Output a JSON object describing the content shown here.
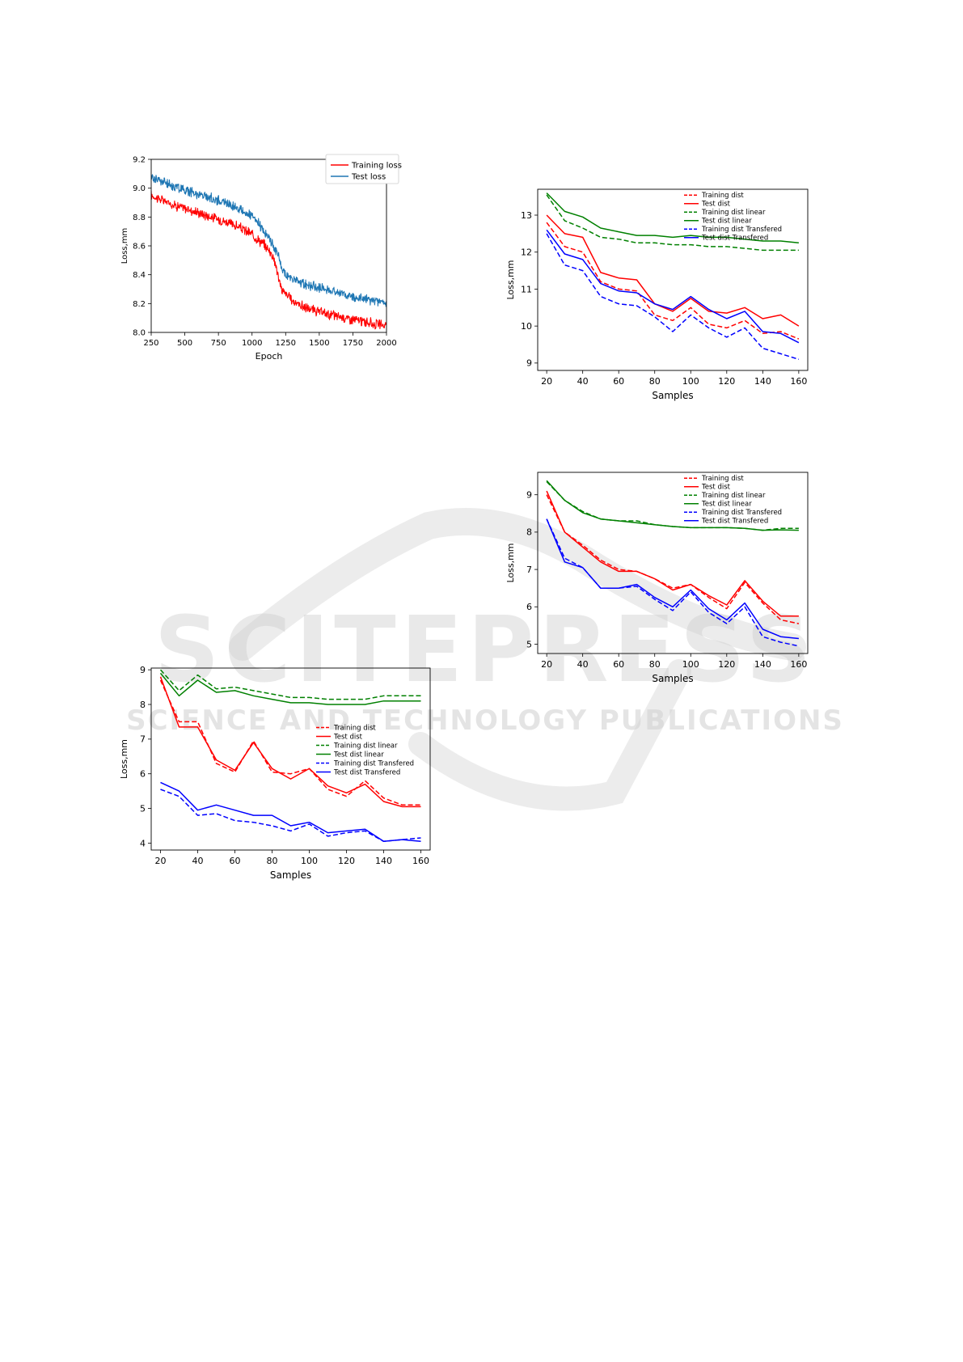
{
  "watermark": {
    "line1": "SCITEPRESS",
    "line2": "SCIENCE AND TECHNOLOGY PUBLICATIONS"
  },
  "chart_data": [
    {
      "id": "epoch",
      "type": "line",
      "title": "",
      "xlabel": "Epoch",
      "ylabel": "Loss,mm",
      "xlim": [
        250,
        2000
      ],
      "ylim": [
        8.0,
        9.2
      ],
      "xticks": [
        250,
        500,
        750,
        1000,
        1250,
        1500,
        1750,
        2000
      ],
      "yticks": [
        8.0,
        8.2,
        8.4,
        8.6,
        8.8,
        9.0,
        9.2
      ],
      "xtick_labels": [
        "250",
        "500",
        "750",
        "1000",
        "1250",
        "1500",
        "1750",
        "2000"
      ],
      "ytick_labels": [
        "8.0",
        "8.2",
        "8.4",
        "8.6",
        "8.8",
        "9.0",
        "9.2"
      ],
      "legend_position": "top-right",
      "noisy": true,
      "series": [
        {
          "name": "Training loss",
          "color": "#ff0000",
          "style": "solid",
          "x": [
            250,
            300,
            400,
            500,
            600,
            700,
            800,
            900,
            1000,
            1050,
            1100,
            1150,
            1180,
            1200,
            1220,
            1250,
            1300,
            1400,
            1500,
            1600,
            1700,
            1800,
            1900,
            2000
          ],
          "y": [
            8.95,
            8.93,
            8.89,
            8.86,
            8.83,
            8.8,
            8.77,
            8.73,
            8.68,
            8.64,
            8.6,
            8.54,
            8.46,
            8.36,
            8.3,
            8.27,
            8.22,
            8.17,
            8.14,
            8.12,
            8.1,
            8.08,
            8.06,
            8.05
          ]
        },
        {
          "name": "Test loss",
          "color": "#1f77b4",
          "style": "solid",
          "x": [
            250,
            300,
            400,
            500,
            600,
            700,
            800,
            900,
            1000,
            1050,
            1100,
            1150,
            1200,
            1220,
            1250,
            1300,
            1400,
            1500,
            1600,
            1700,
            1800,
            1900,
            2000
          ],
          "y": [
            9.08,
            9.06,
            9.02,
            8.99,
            8.96,
            8.93,
            8.9,
            8.86,
            8.8,
            8.75,
            8.69,
            8.62,
            8.52,
            8.44,
            8.4,
            8.37,
            8.33,
            8.31,
            8.29,
            8.26,
            8.24,
            8.22,
            8.2
          ]
        }
      ]
    },
    {
      "id": "samples-a",
      "type": "line",
      "title": "",
      "xlabel": "Samples",
      "ylabel": "Loss,mm",
      "xlim": [
        15,
        165
      ],
      "ylim": [
        8.8,
        13.7
      ],
      "xticks": [
        20,
        40,
        60,
        80,
        100,
        120,
        140,
        160
      ],
      "yticks": [
        9,
        10,
        11,
        12,
        13
      ],
      "xtick_labels": [
        "20",
        "40",
        "60",
        "80",
        "100",
        "120",
        "140",
        "160"
      ],
      "ytick_labels": [
        "9",
        "10",
        "11",
        "12",
        "13"
      ],
      "legend_position": "top-right",
      "x": [
        20,
        30,
        40,
        50,
        60,
        70,
        80,
        90,
        100,
        110,
        120,
        130,
        140,
        150,
        160
      ],
      "series": [
        {
          "name": "Training dist",
          "color": "#ff0000",
          "style": "dashed",
          "values": [
            12.8,
            12.15,
            12.0,
            11.2,
            11.0,
            10.95,
            10.3,
            10.15,
            10.5,
            10.05,
            9.95,
            10.15,
            9.8,
            9.85,
            9.65
          ]
        },
        {
          "name": "Test dist",
          "color": "#ff0000",
          "style": "solid",
          "values": [
            13.0,
            12.5,
            12.4,
            11.45,
            11.3,
            11.25,
            10.6,
            10.4,
            10.75,
            10.4,
            10.35,
            10.5,
            10.2,
            10.3,
            10.0
          ]
        },
        {
          "name": "Training dist linear",
          "color": "#008000",
          "style": "dashed",
          "values": [
            13.55,
            12.85,
            12.65,
            12.4,
            12.35,
            12.25,
            12.25,
            12.2,
            12.2,
            12.15,
            12.15,
            12.1,
            12.05,
            12.05,
            12.05
          ]
        },
        {
          "name": "Test dist linear",
          "color": "#008000",
          "style": "solid",
          "values": [
            13.6,
            13.1,
            12.95,
            12.65,
            12.55,
            12.45,
            12.45,
            12.4,
            12.45,
            12.4,
            12.4,
            12.35,
            12.3,
            12.3,
            12.25
          ]
        },
        {
          "name": "Training dist Transfered",
          "color": "#0000ff",
          "style": "dashed",
          "values": [
            12.5,
            11.65,
            11.5,
            10.8,
            10.6,
            10.55,
            10.25,
            9.85,
            10.3,
            9.95,
            9.7,
            9.95,
            9.4,
            9.25,
            9.1
          ]
        },
        {
          "name": "Test dist Transfered",
          "color": "#0000ff",
          "style": "solid",
          "values": [
            12.6,
            11.95,
            11.8,
            11.15,
            10.95,
            10.9,
            10.6,
            10.45,
            10.8,
            10.45,
            10.2,
            10.4,
            9.85,
            9.8,
            9.55
          ]
        }
      ]
    },
    {
      "id": "samples-b",
      "type": "line",
      "title": "",
      "xlabel": "Samples",
      "ylabel": "Loss,mm",
      "xlim": [
        15,
        165
      ],
      "ylim": [
        4.75,
        9.6
      ],
      "xticks": [
        20,
        40,
        60,
        80,
        100,
        120,
        140,
        160
      ],
      "yticks": [
        5,
        6,
        7,
        8,
        9
      ],
      "xtick_labels": [
        "20",
        "40",
        "60",
        "80",
        "100",
        "120",
        "140",
        "160"
      ],
      "ytick_labels": [
        "5",
        "6",
        "7",
        "8",
        "9"
      ],
      "legend_position": "top-right",
      "x": [
        20,
        30,
        40,
        50,
        60,
        70,
        80,
        90,
        100,
        110,
        120,
        130,
        140,
        150,
        160
      ],
      "series": [
        {
          "name": "Training dist",
          "color": "#ff0000",
          "style": "dashed",
          "values": [
            9.0,
            8.0,
            7.65,
            7.25,
            7.0,
            6.95,
            6.75,
            6.5,
            6.6,
            6.25,
            5.95,
            6.65,
            6.1,
            5.65,
            5.55
          ]
        },
        {
          "name": "Test dist",
          "color": "#ff0000",
          "style": "solid",
          "values": [
            9.1,
            8.0,
            7.6,
            7.2,
            6.95,
            6.95,
            6.75,
            6.45,
            6.6,
            6.3,
            6.05,
            6.7,
            6.15,
            5.75,
            5.75
          ]
        },
        {
          "name": "Training dist linear",
          "color": "#008000",
          "style": "dashed",
          "values": [
            9.35,
            8.85,
            8.55,
            8.35,
            8.3,
            8.3,
            8.2,
            8.15,
            8.12,
            8.12,
            8.12,
            8.1,
            8.05,
            8.1,
            8.1
          ]
        },
        {
          "name": "Test dist linear",
          "color": "#008000",
          "style": "solid",
          "values": [
            9.38,
            8.85,
            8.52,
            8.35,
            8.3,
            8.25,
            8.2,
            8.15,
            8.12,
            8.12,
            8.12,
            8.1,
            8.05,
            8.06,
            8.05
          ]
        },
        {
          "name": "Training dist Transfered",
          "color": "#0000ff",
          "style": "dashed",
          "values": [
            8.35,
            7.3,
            7.05,
            6.5,
            6.5,
            6.55,
            6.2,
            5.9,
            6.4,
            5.85,
            5.55,
            6.0,
            5.2,
            5.05,
            4.95
          ]
        },
        {
          "name": "Test dist Transfered",
          "color": "#0000ff",
          "style": "solid",
          "values": [
            8.35,
            7.2,
            7.05,
            6.5,
            6.5,
            6.6,
            6.25,
            6.0,
            6.45,
            5.95,
            5.65,
            6.1,
            5.4,
            5.2,
            5.15
          ]
        }
      ]
    },
    {
      "id": "samples-c",
      "type": "line",
      "title": "",
      "xlabel": "Samples",
      "ylabel": "Loss,mm",
      "xlim": [
        15,
        165
      ],
      "ylim": [
        3.8,
        9.05
      ],
      "xticks": [
        20,
        40,
        60,
        80,
        100,
        120,
        140,
        160
      ],
      "yticks": [
        4,
        5,
        6,
        7,
        8,
        9
      ],
      "xtick_labels": [
        "20",
        "40",
        "60",
        "80",
        "100",
        "120",
        "140",
        "160"
      ],
      "ytick_labels": [
        "4",
        "5",
        "6",
        "7",
        "8",
        "9"
      ],
      "legend_position": "center-right",
      "x": [
        20,
        30,
        40,
        50,
        60,
        70,
        80,
        90,
        100,
        110,
        120,
        130,
        140,
        150,
        160
      ],
      "series": [
        {
          "name": "Training dist",
          "color": "#ff0000",
          "style": "dashed",
          "values": [
            8.7,
            7.5,
            7.5,
            6.3,
            6.05,
            6.95,
            6.05,
            6.0,
            6.15,
            5.55,
            5.35,
            5.8,
            5.3,
            5.1,
            5.1
          ]
        },
        {
          "name": "Test dist",
          "color": "#ff0000",
          "style": "solid",
          "values": [
            8.8,
            7.35,
            7.35,
            6.4,
            6.1,
            6.9,
            6.15,
            5.85,
            6.15,
            5.65,
            5.45,
            5.7,
            5.2,
            5.05,
            5.05
          ]
        },
        {
          "name": "Training dist linear",
          "color": "#008000",
          "style": "dashed",
          "values": [
            9.0,
            8.4,
            8.85,
            8.45,
            8.5,
            8.4,
            8.3,
            8.2,
            8.2,
            8.15,
            8.15,
            8.15,
            8.25,
            8.25,
            8.25
          ]
        },
        {
          "name": "Test dist linear",
          "color": "#008000",
          "style": "solid",
          "values": [
            8.9,
            8.25,
            8.7,
            8.35,
            8.4,
            8.25,
            8.15,
            8.05,
            8.05,
            8.0,
            8.0,
            8.0,
            8.1,
            8.1,
            8.1
          ]
        },
        {
          "name": "Training dist Transfered",
          "color": "#0000ff",
          "style": "dashed",
          "values": [
            5.55,
            5.35,
            4.8,
            4.85,
            4.65,
            4.6,
            4.5,
            4.35,
            4.55,
            4.2,
            4.3,
            4.35,
            4.05,
            4.1,
            4.15
          ]
        },
        {
          "name": "Test dist Transfered",
          "color": "#0000ff",
          "style": "solid",
          "values": [
            5.75,
            5.5,
            4.95,
            5.1,
            4.95,
            4.8,
            4.8,
            4.5,
            4.6,
            4.3,
            4.35,
            4.4,
            4.05,
            4.1,
            4.05
          ]
        }
      ]
    }
  ]
}
